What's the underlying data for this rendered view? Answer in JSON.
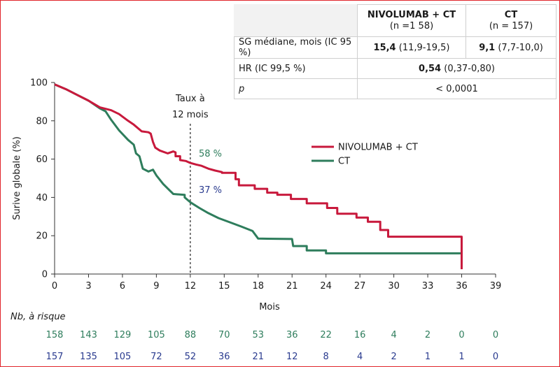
{
  "summary_table": {
    "col1_title": "NIVOLUMAB + CT",
    "col1_n": "(n =1 58)",
    "col2_title": "CT",
    "col2_n": "(n = 157)",
    "rows": [
      {
        "label": "SG médiane, mois (IC 95 %)",
        "a_bold": "15,4",
        "a_rest": " (11,9-19,5)",
        "b_bold": "9,1",
        "b_rest": " (7,7-10,0)"
      },
      {
        "label": "HR (IC 99,5 %)",
        "span_bold": "0,54",
        "span_rest": " (0,37-0,80)"
      },
      {
        "label": "p",
        "span_rest": "< 0,0001"
      }
    ]
  },
  "colors": {
    "nivo": "#c8193c",
    "ct": "#2e7d5c",
    "ct_risk": "#2a3b8f",
    "frame": "#e0242b"
  },
  "chart_data": {
    "type": "line",
    "xlabel": "Mois",
    "ylabel": "Surive globale (%)",
    "xlim": [
      0,
      39
    ],
    "ylim": [
      0,
      100
    ],
    "xticks": [
      0,
      3,
      6,
      9,
      12,
      15,
      18,
      21,
      24,
      27,
      30,
      33,
      36,
      39
    ],
    "yticks": [
      0,
      20,
      40,
      60,
      80,
      100
    ],
    "grid": false,
    "legend_position": "right",
    "reference_line": {
      "x": 12,
      "label_line1": "Taux à",
      "label_line2": "12 mois"
    },
    "series": [
      {
        "name": "NIVOLUMAB + CT",
        "color": "#c8193c",
        "rate_label": "58 %",
        "points": [
          [
            0,
            99
          ],
          [
            1,
            96.5
          ],
          [
            2,
            93.5
          ],
          [
            3,
            90.5
          ],
          [
            4,
            87
          ],
          [
            5,
            85.5
          ],
          [
            5.7,
            83.5
          ],
          [
            6.5,
            80
          ],
          [
            7,
            78
          ],
          [
            7.7,
            74.5
          ],
          [
            8.3,
            74
          ],
          [
            8.5,
            73.3
          ],
          [
            8.7,
            69
          ],
          [
            8.9,
            66
          ],
          [
            9.3,
            64.5
          ],
          [
            10,
            63
          ],
          [
            10.5,
            64
          ],
          [
            10.7,
            63.5
          ],
          [
            10.7,
            61.5
          ],
          [
            11.1,
            61.5
          ],
          [
            11.1,
            59.5
          ],
          [
            11.6,
            59
          ],
          [
            12,
            58
          ],
          [
            12.5,
            57.2
          ],
          [
            13,
            56.5
          ],
          [
            13.6,
            55
          ],
          [
            14.2,
            54
          ],
          [
            14.8,
            53.2
          ],
          [
            14.8,
            52.8
          ],
          [
            16,
            52.8
          ],
          [
            16,
            49.5
          ],
          [
            16.3,
            49.5
          ],
          [
            16.3,
            46.3
          ],
          [
            17.7,
            46.3
          ],
          [
            17.7,
            44.5
          ],
          [
            18.8,
            44.5
          ],
          [
            18.8,
            42.5
          ],
          [
            19.7,
            42.5
          ],
          [
            19.7,
            41.4
          ],
          [
            20.9,
            41.4
          ],
          [
            20.9,
            39.2
          ],
          [
            22.3,
            39.2
          ],
          [
            22.3,
            36.9
          ],
          [
            24.1,
            36.9
          ],
          [
            24.1,
            34.5
          ],
          [
            25,
            34.5
          ],
          [
            25,
            31.5
          ],
          [
            26.7,
            31.5
          ],
          [
            26.7,
            29.5
          ],
          [
            27.7,
            29.5
          ],
          [
            27.7,
            27.3
          ],
          [
            28.8,
            27.3
          ],
          [
            28.8,
            23
          ],
          [
            29.5,
            23
          ],
          [
            29.5,
            19.5
          ],
          [
            36,
            19.5
          ],
          [
            36,
            2.5
          ]
        ]
      },
      {
        "name": "CT",
        "color": "#2e7d5c",
        "rate_label": "37 %",
        "points": [
          [
            0,
            99
          ],
          [
            1,
            96.5
          ],
          [
            2,
            93.5
          ],
          [
            3,
            90.5
          ],
          [
            4,
            86.5
          ],
          [
            4.5,
            85
          ],
          [
            5,
            80.5
          ],
          [
            5.7,
            75
          ],
          [
            6.5,
            70
          ],
          [
            7,
            67.5
          ],
          [
            7.2,
            63
          ],
          [
            7.5,
            61.5
          ],
          [
            7.8,
            55
          ],
          [
            8.3,
            53.5
          ],
          [
            8.7,
            54.5
          ],
          [
            9,
            51.5
          ],
          [
            9.6,
            47
          ],
          [
            10.2,
            43.5
          ],
          [
            10.5,
            41.8
          ],
          [
            11.5,
            41.3
          ],
          [
            11.5,
            40
          ],
          [
            12,
            37.5
          ],
          [
            12.8,
            34.5
          ],
          [
            13.6,
            31.8
          ],
          [
            14.5,
            29.2
          ],
          [
            15.5,
            27
          ],
          [
            16.5,
            24.8
          ],
          [
            17.5,
            22.5
          ],
          [
            18,
            18.5
          ],
          [
            21,
            18.3
          ],
          [
            21.1,
            14.6
          ],
          [
            22.3,
            14.6
          ],
          [
            22.3,
            12.3
          ],
          [
            24,
            12.3
          ],
          [
            24,
            10.8
          ],
          [
            36,
            10.8
          ],
          [
            36,
            10.2
          ]
        ]
      }
    ],
    "at_risk": {
      "title": "Nb, à risque",
      "months": [
        0,
        3,
        6,
        9,
        12,
        15,
        18,
        21,
        24,
        27,
        30,
        33,
        36,
        39
      ],
      "nivo": [
        158,
        143,
        129,
        105,
        88,
        70,
        53,
        36,
        22,
        16,
        4,
        2,
        0,
        0
      ],
      "ct": [
        157,
        135,
        105,
        72,
        52,
        36,
        21,
        12,
        8,
        4,
        2,
        1,
        1,
        0
      ]
    }
  }
}
